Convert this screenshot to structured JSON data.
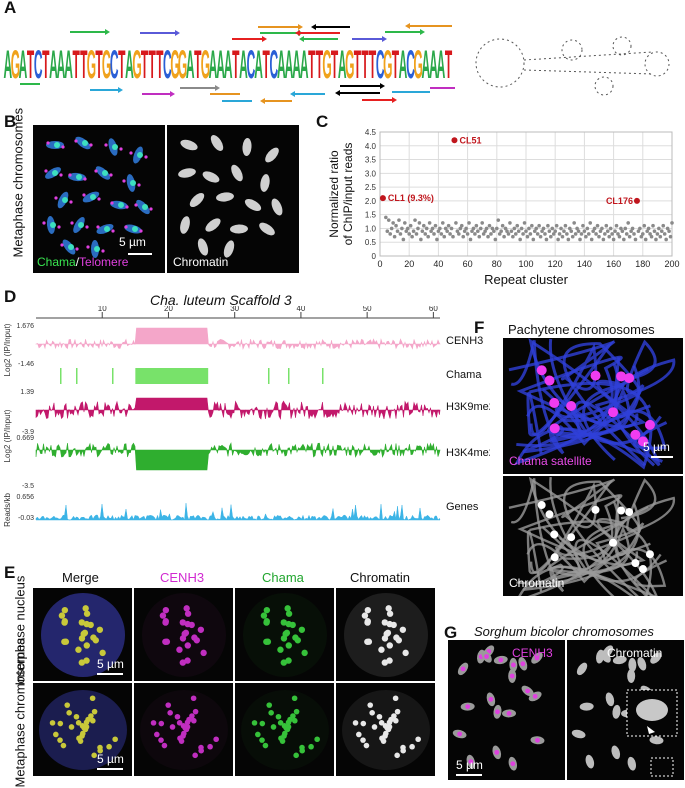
{
  "panels": {
    "a": {
      "label": "A",
      "sequence": "AGATCTAAATTGTGCTAGTTTCGGATGAAATACATCAAAATTGTAGTTTCGTACGAAAT"
    },
    "b": {
      "label": "B",
      "ylabel": "Metaphase chromosomes",
      "img1_label_a": "Chama",
      "img1_label_sep": "/",
      "img1_label_b": "Telomere",
      "img2_label": "Chromatin",
      "scale": "5 µm"
    },
    "c": {
      "label": "C"
    },
    "d": {
      "label": "D",
      "title": "Cha. luteum Scaffold 3",
      "ticks": [
        "10",
        "20",
        "30",
        "40",
        "50",
        "60"
      ],
      "tracks": [
        "CENH3",
        "Chama",
        "H3K9me2",
        "H3K4me2",
        "Genes"
      ],
      "axis1_label": "Log2 (IP/Input)",
      "axis2_label": "Log2 (IP/Input)",
      "axis3_label": "Reads/kb",
      "v_cenh3_top": "1.676",
      "v_cenh3_bot": "-1.46",
      "v_h3k9_top": "1.39",
      "v_h3k9_bot": "-3.9",
      "v_h3k4_top": "0.669",
      "v_h3k4_bot": "-3.5",
      "v_genes_top": "0.656",
      "v_genes_bot": "-0.03"
    },
    "e": {
      "label": "E",
      "cols": [
        "Merge",
        "CENH3",
        "Chama",
        "Chromatin"
      ],
      "row1": "Interphase nucleus",
      "row2": "Metaphase chromosomes",
      "scale": "5 µm"
    },
    "f": {
      "label": "F",
      "title": "Pachytene chromosomes",
      "img1_label": "Chama satellite",
      "img2_label": "Chromatin",
      "scale": "5 µm"
    },
    "g": {
      "label": "G",
      "title": "Sorghum bicolor chromosomes",
      "img1_label": "CENH3",
      "img2_label": "Chromatin",
      "scale": "5 µm"
    }
  },
  "chart_data": {
    "type": "scatter",
    "xlabel": "Repeat cluster",
    "ylabel": "Normalized ratio of ChIP/input reads",
    "xlim": [
      0,
      200
    ],
    "ylim": [
      0,
      4.5
    ],
    "xticks": [
      "0",
      "20",
      "40",
      "60",
      "80",
      "100",
      "120",
      "140",
      "160",
      "180",
      "200"
    ],
    "yticks": [
      "0",
      "0.5",
      "1.0",
      "1.5",
      "2.0",
      "2.5",
      "3.0",
      "3.5",
      "4.0",
      "4.5"
    ],
    "grid": true,
    "highlighted": [
      {
        "x": 2,
        "y": 2.1,
        "label": "CL1 (9.3%)"
      },
      {
        "x": 51,
        "y": 4.2,
        "label": "CL51"
      },
      {
        "x": 176,
        "y": 2.0,
        "label": "CL176"
      }
    ],
    "points": [
      [
        4,
        1.4
      ],
      [
        5,
        0.9
      ],
      [
        6,
        1.3
      ],
      [
        7,
        0.8
      ],
      [
        8,
        1.0
      ],
      [
        9,
        1.2
      ],
      [
        10,
        0.7
      ],
      [
        11,
        1.1
      ],
      [
        12,
        0.9
      ],
      [
        13,
        1.3
      ],
      [
        14,
        0.8
      ],
      [
        15,
        1.0
      ],
      [
        16,
        0.6
      ],
      [
        17,
        1.2
      ],
      [
        18,
        0.9
      ],
      [
        19,
        1.0
      ],
      [
        20,
        0.8
      ],
      [
        21,
        1.1
      ],
      [
        22,
        0.7
      ],
      [
        23,
        0.9
      ],
      [
        24,
        1.3
      ],
      [
        25,
        0.8
      ],
      [
        26,
        1.0
      ],
      [
        27,
        1.2
      ],
      [
        28,
        0.6
      ],
      [
        29,
        0.9
      ],
      [
        30,
        1.1
      ],
      [
        31,
        0.8
      ],
      [
        32,
        1.0
      ],
      [
        33,
        0.7
      ],
      [
        34,
        1.2
      ],
      [
        35,
        0.9
      ],
      [
        36,
        1.0
      ],
      [
        37,
        0.8
      ],
      [
        38,
        1.1
      ],
      [
        39,
        0.6
      ],
      [
        40,
        0.9
      ],
      [
        41,
        1.0
      ],
      [
        42,
        0.8
      ],
      [
        43,
        1.2
      ],
      [
        44,
        0.7
      ],
      [
        45,
        1.0
      ],
      [
        46,
        0.9
      ],
      [
        47,
        1.1
      ],
      [
        48,
        0.8
      ],
      [
        49,
        1.0
      ],
      [
        50,
        0.7
      ],
      [
        52,
        1.2
      ],
      [
        53,
        0.9
      ],
      [
        54,
        0.8
      ],
      [
        55,
        1.0
      ],
      [
        56,
        1.1
      ],
      [
        57,
        0.7
      ],
      [
        58,
        0.9
      ],
      [
        59,
        1.0
      ],
      [
        60,
        0.8
      ],
      [
        61,
        1.2
      ],
      [
        62,
        0.6
      ],
      [
        63,
        0.9
      ],
      [
        64,
        1.0
      ],
      [
        65,
        0.8
      ],
      [
        66,
        1.1
      ],
      [
        67,
        0.9
      ],
      [
        68,
        0.7
      ],
      [
        69,
        1.0
      ],
      [
        70,
        1.2
      ],
      [
        71,
        0.8
      ],
      [
        72,
        0.9
      ],
      [
        73,
        1.0
      ],
      [
        74,
        0.7
      ],
      [
        75,
        1.1
      ],
      [
        76,
        0.8
      ],
      [
        77,
        1.0
      ],
      [
        78,
        0.9
      ],
      [
        79,
        0.6
      ],
      [
        80,
        1.0
      ],
      [
        81,
        1.3
      ],
      [
        82,
        0.8
      ],
      [
        83,
        0.9
      ],
      [
        84,
        1.1
      ],
      [
        85,
        0.7
      ],
      [
        86,
        1.0
      ],
      [
        87,
        0.9
      ],
      [
        88,
        0.8
      ],
      [
        89,
        1.2
      ],
      [
        90,
        0.9
      ],
      [
        91,
        0.7
      ],
      [
        92,
        1.0
      ],
      [
        93,
        0.8
      ],
      [
        94,
        1.1
      ],
      [
        95,
        0.9
      ],
      [
        96,
        0.6
      ],
      [
        97,
        1.0
      ],
      [
        98,
        0.8
      ],
      [
        99,
        1.2
      ],
      [
        100,
        0.9
      ],
      [
        101,
        0.7
      ],
      [
        102,
        1.0
      ],
      [
        103,
        0.8
      ],
      [
        104,
        1.1
      ],
      [
        105,
        0.6
      ],
      [
        106,
        0.9
      ],
      [
        107,
        1.0
      ],
      [
        108,
        0.8
      ],
      [
        109,
        1.1
      ],
      [
        110,
        0.7
      ],
      [
        111,
        0.9
      ],
      [
        112,
        1.0
      ],
      [
        113,
        0.8
      ],
      [
        114,
        0.6
      ],
      [
        115,
        1.1
      ],
      [
        116,
        0.9
      ],
      [
        117,
        0.7
      ],
      [
        118,
        1.0
      ],
      [
        119,
        0.8
      ],
      [
        120,
        0.9
      ],
      [
        121,
        1.1
      ],
      [
        122,
        0.6
      ],
      [
        123,
        0.8
      ],
      [
        124,
        1.0
      ],
      [
        125,
        0.7
      ],
      [
        126,
        0.9
      ],
      [
        127,
        1.1
      ],
      [
        128,
        0.8
      ],
      [
        129,
        0.6
      ],
      [
        130,
        1.0
      ],
      [
        131,
        0.9
      ],
      [
        132,
        0.7
      ],
      [
        133,
        1.2
      ],
      [
        134,
        0.8
      ],
      [
        135,
        1.0
      ],
      [
        136,
        0.9
      ],
      [
        137,
        0.6
      ],
      [
        138,
        0.8
      ],
      [
        139,
        1.1
      ],
      [
        140,
        0.9
      ],
      [
        141,
        0.7
      ],
      [
        142,
        1.0
      ],
      [
        143,
        0.8
      ],
      [
        144,
        1.2
      ],
      [
        145,
        0.6
      ],
      [
        146,
        0.9
      ],
      [
        147,
        1.0
      ],
      [
        148,
        0.8
      ],
      [
        149,
        1.1
      ],
      [
        150,
        0.7
      ],
      [
        151,
        0.9
      ],
      [
        152,
        1.0
      ],
      [
        153,
        0.6
      ],
      [
        154,
        0.8
      ],
      [
        155,
        1.1
      ],
      [
        156,
        0.9
      ],
      [
        157,
        0.7
      ],
      [
        158,
        1.0
      ],
      [
        159,
        0.8
      ],
      [
        160,
        0.6
      ],
      [
        161,
        0.9
      ],
      [
        162,
        1.1
      ],
      [
        163,
        0.8
      ],
      [
        164,
        0.7
      ],
      [
        165,
        1.0
      ],
      [
        166,
        0.9
      ],
      [
        167,
        0.6
      ],
      [
        168,
        1.0
      ],
      [
        169,
        0.8
      ],
      [
        170,
        1.2
      ],
      [
        171,
        0.7
      ],
      [
        172,
        0.9
      ],
      [
        173,
        1.0
      ],
      [
        174,
        0.8
      ],
      [
        175,
        0.6
      ],
      [
        177,
        0.9
      ],
      [
        178,
        1.0
      ],
      [
        179,
        0.7
      ],
      [
        180,
        0.8
      ],
      [
        181,
        1.1
      ],
      [
        182,
        0.6
      ],
      [
        183,
        0.9
      ],
      [
        184,
        1.0
      ],
      [
        185,
        0.8
      ],
      [
        186,
        0.7
      ],
      [
        187,
        1.1
      ],
      [
        188,
        0.9
      ],
      [
        189,
        0.6
      ],
      [
        190,
        0.8
      ],
      [
        191,
        1.0
      ],
      [
        192,
        0.7
      ],
      [
        193,
        0.9
      ],
      [
        194,
        1.1
      ],
      [
        195,
        0.8
      ],
      [
        196,
        0.6
      ],
      [
        197,
        1.0
      ],
      [
        198,
        0.9
      ],
      [
        199,
        0.7
      ],
      [
        200,
        1.2
      ]
    ]
  },
  "colors": {
    "cenh3": "#f4a6c9",
    "chama": "#78e26a",
    "h3k9": "#c2186b",
    "h3k4": "#2fae2f",
    "genes": "#3cb4e6",
    "highlight": "#c0161d",
    "point": "#8a8a8a"
  }
}
